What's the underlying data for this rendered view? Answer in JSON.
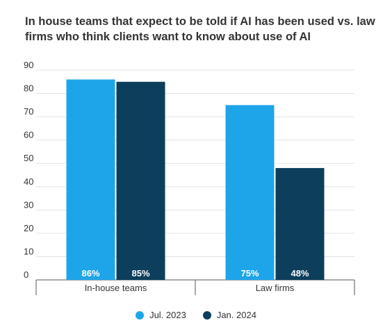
{
  "chart_data": {
    "type": "bar",
    "title": "In house teams that expect to be told if AI has been used vs. law firms who think clients want to know about use of AI",
    "xlabel": "",
    "ylabel": "",
    "categories": [
      "In-house teams",
      "Law firms"
    ],
    "series": [
      {
        "name": "Jul. 2023",
        "values": [
          86,
          75
        ],
        "labels": [
          "86%",
          "75%"
        ],
        "color": "#1ea5e9"
      },
      {
        "name": "Jan. 2024",
        "values": [
          85,
          48
        ],
        "labels": [
          "85%",
          "48%"
        ],
        "color": "#0d3f5c"
      }
    ],
    "ylim": [
      0,
      90
    ],
    "yticks": [
      0,
      10,
      20,
      30,
      40,
      50,
      60,
      70,
      80,
      90
    ],
    "grid": true,
    "legend_position": "bottom-center",
    "data_label_position": "inside-bottom"
  }
}
